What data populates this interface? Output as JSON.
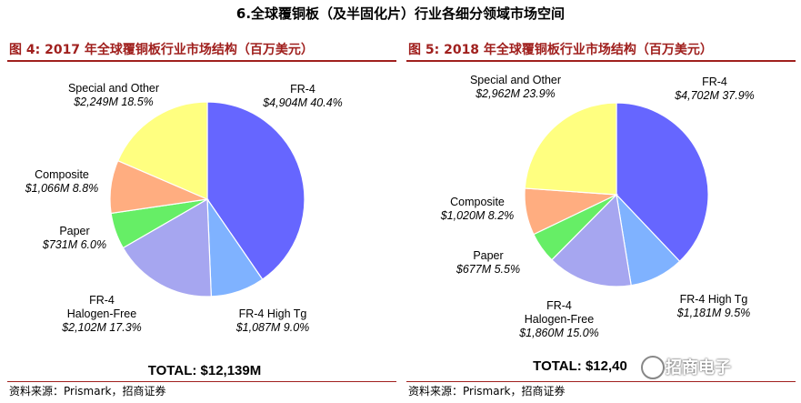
{
  "section_title": "6.全球覆铜板（及半固化片）行业各细分领域市场空间",
  "figures": [
    {
      "title": "图 4:  2017 年全球覆铜板行业市场结构（百万美元）",
      "source": "资料来源：Prismark，招商证券",
      "total": "TOTAL: $12,139M"
    },
    {
      "title": "图 5:  2018 年全球覆铜板行业市场结构（百万美元）",
      "source": "资料来源：Prismark，招商证券",
      "total": "TOTAL: $12,40"
    }
  ],
  "watermark": "招商电子",
  "chart_data": [
    {
      "type": "pie",
      "title": "2017 年全球覆铜板行业市场结构（百万美元）",
      "unit": "百万美元",
      "slices": [
        {
          "name": "FR-4",
          "value_label": "$4,904M",
          "pct_label": "40.4%",
          "value": 4904,
          "pct": 40.4,
          "color": "#6666ff"
        },
        {
          "name": "FR-4 High Tg",
          "value_label": "$1,087M",
          "pct_label": "9.0%",
          "value": 1087,
          "pct": 9.0,
          "color": "#7fb2ff"
        },
        {
          "name": "FR-4 Halogen-Free",
          "value_label": "$2,102M",
          "pct_label": "17.3%",
          "value": 2102,
          "pct": 17.3,
          "color": "#a6a6f0"
        },
        {
          "name": "Paper",
          "value_label": "$731M",
          "pct_label": "6.0%",
          "value": 731,
          "pct": 6.0,
          "color": "#66ee66"
        },
        {
          "name": "Composite",
          "value_label": "$1,066M",
          "pct_label": "8.8%",
          "value": 1066,
          "pct": 8.8,
          "color": "#ffad80"
        },
        {
          "name": "Special and Other",
          "value_label": "$2,249M",
          "pct_label": "18.5%",
          "value": 2249,
          "pct": 18.5,
          "color": "#ffff80"
        }
      ]
    },
    {
      "type": "pie",
      "title": "2018 年全球覆铜板行业市场结构（百万美元）",
      "unit": "百万美元",
      "slices": [
        {
          "name": "FR-4",
          "value_label": "$4,702M",
          "pct_label": "37.9%",
          "value": 4702,
          "pct": 37.9,
          "color": "#6666ff"
        },
        {
          "name": "FR-4 High Tg",
          "value_label": "$1,181M",
          "pct_label": "9.5%",
          "value": 1181,
          "pct": 9.5,
          "color": "#7fb2ff"
        },
        {
          "name": "FR-4 Halogen-Free",
          "value_label": "$1,860M",
          "pct_label": "15.0%",
          "value": 1860,
          "pct": 15.0,
          "color": "#a6a6f0"
        },
        {
          "name": "Paper",
          "value_label": "$677M",
          "pct_label": "5.5%",
          "value": 677,
          "pct": 5.5,
          "color": "#66ee66"
        },
        {
          "name": "Composite",
          "value_label": "$1,020M",
          "pct_label": "8.2%",
          "value": 1020,
          "pct": 8.2,
          "color": "#ffad80"
        },
        {
          "name": "Special and Other",
          "value_label": "$2,962M",
          "pct_label": "23.9%",
          "value": 2962,
          "pct": 23.9,
          "color": "#ffff80"
        }
      ]
    }
  ]
}
